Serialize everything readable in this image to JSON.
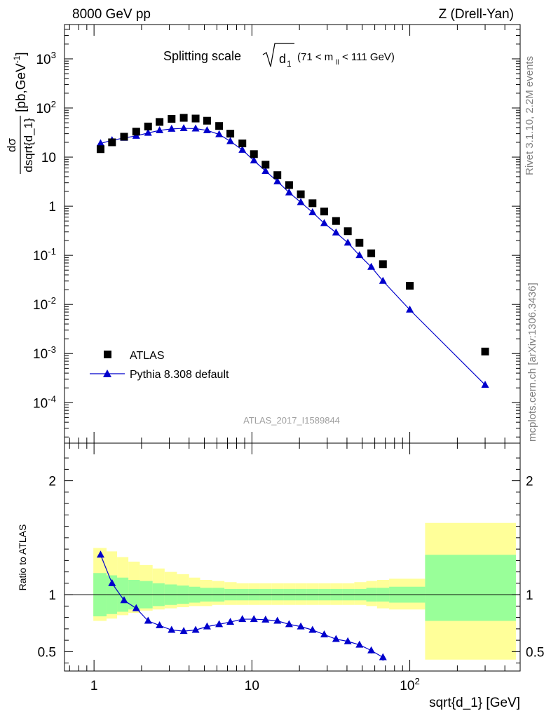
{
  "header": {
    "left": "8000 GeV pp",
    "right": "Z (Drell-Yan)"
  },
  "side_labels": {
    "rivet": "Rivet 3.1.10,  2.2M events",
    "mcplots": "mcplots.cern.ch [arXiv:1306.3436]"
  },
  "chart_data": [
    {
      "type": "scatter",
      "title": "Splitting scale √d₁ (71 < m_ll < 111 GeV)",
      "title_main": "Splitting scale",
      "title_symbol": "d",
      "title_sub": "1",
      "title_range_left": "(71 < m",
      "title_range_sub": "ll",
      "title_range_right": " < 111 GeV)",
      "ylabel_numerator": "dσ",
      "ylabel_denominator": "dsqrt{d_1}",
      "ylabel_units": "[pb,GeV",
      "ylabel_units_sup": "-1",
      "ylabel_units_close": "]",
      "yscale": "log",
      "xscale": "log",
      "xlim": [
        0.65,
        500
      ],
      "ylim": [
        1.5e-05,
        5000
      ],
      "yticks": [
        {
          "value": 0.0001,
          "base": "10",
          "exp": "-4"
        },
        {
          "value": 0.001,
          "base": "10",
          "exp": "-3"
        },
        {
          "value": 0.01,
          "base": "10",
          "exp": "-2"
        },
        {
          "value": 0.1,
          "base": "10",
          "exp": "-1"
        },
        {
          "value": 1,
          "base": "1",
          "exp": ""
        },
        {
          "value": 10,
          "base": "10",
          "exp": ""
        },
        {
          "value": 100,
          "base": "10",
          "exp": "2"
        },
        {
          "value": 1000,
          "base": "10",
          "exp": "3"
        }
      ],
      "watermark": "ATLAS_2017_I1589844",
      "legend_position": "lower-left",
      "series": [
        {
          "name": "ATLAS",
          "marker": "square",
          "color": "#000000",
          "x": [
            1.1,
            1.3,
            1.55,
            1.85,
            2.2,
            2.6,
            3.1,
            3.7,
            4.4,
            5.2,
            6.2,
            7.3,
            8.7,
            10.3,
            12.2,
            14.5,
            17.2,
            20.4,
            24.2,
            28.7,
            34.1,
            40.5,
            48.0,
            57.0,
            67.6,
            100,
            300
          ],
          "y": [
            14.5,
            20,
            26,
            33,
            42,
            52,
            60,
            63,
            61,
            55,
            43,
            30,
            19,
            11.5,
            7.0,
            4.3,
            2.7,
            1.75,
            1.15,
            0.78,
            0.5,
            0.31,
            0.18,
            0.11,
            0.066,
            0.024,
            0.0011
          ]
        },
        {
          "name": "Pythia 8.308 default",
          "marker": "triangle",
          "color": "#0000cc",
          "x": [
            1.1,
            1.3,
            1.55,
            1.85,
            2.2,
            2.6,
            3.1,
            3.7,
            4.4,
            5.2,
            6.2,
            7.3,
            8.7,
            10.3,
            12.2,
            14.5,
            17.2,
            20.4,
            24.2,
            28.7,
            34.1,
            40.5,
            48.0,
            57.0,
            67.6,
            100,
            300
          ],
          "y": [
            19,
            22,
            24.5,
            27,
            31,
            35,
            37.5,
            38.5,
            38,
            35,
            29,
            21,
            14,
            8.5,
            5.2,
            3.2,
            1.9,
            1.2,
            0.75,
            0.45,
            0.29,
            0.18,
            0.1,
            0.058,
            0.03,
            0.0078,
            0.00023
          ]
        }
      ]
    },
    {
      "type": "line",
      "ylabel": "Ratio to ATLAS",
      "xlabel": "sqrt{d_1} [GeV]",
      "xscale": "log",
      "xlim": [
        0.65,
        500
      ],
      "ylim": [
        0.33,
        2.33
      ],
      "xticks": [
        {
          "value": 1,
          "base": "1",
          "exp": ""
        },
        {
          "value": 10,
          "base": "10",
          "exp": ""
        },
        {
          "value": 100,
          "base": "10",
          "exp": "2"
        }
      ],
      "yticks": [
        {
          "value": 0.5,
          "label": "0.5"
        },
        {
          "value": 1,
          "label": "1"
        },
        {
          "value": 2,
          "label": "2"
        }
      ],
      "bands": {
        "edges": [
          0.99,
          1.2,
          1.4,
          1.65,
          1.95,
          2.35,
          2.8,
          3.35,
          4.0,
          4.7,
          5.6,
          6.7,
          8.0,
          9.5,
          11.2,
          13.3,
          15.8,
          18.8,
          22.3,
          26.5,
          31.5,
          37.5,
          44.5,
          53,
          62,
          74,
          125,
          470
        ],
        "yellow_hi": [
          1.41,
          1.38,
          1.33,
          1.29,
          1.26,
          1.23,
          1.2,
          1.18,
          1.15,
          1.13,
          1.12,
          1.11,
          1.1,
          1.1,
          1.1,
          1.1,
          1.1,
          1.1,
          1.1,
          1.1,
          1.1,
          1.1,
          1.11,
          1.12,
          1.13,
          1.14,
          1.63
        ],
        "yellow_lo": [
          0.77,
          0.79,
          0.82,
          0.84,
          0.86,
          0.87,
          0.88,
          0.89,
          0.9,
          0.9,
          0.91,
          0.91,
          0.91,
          0.91,
          0.91,
          0.91,
          0.91,
          0.91,
          0.91,
          0.91,
          0.91,
          0.91,
          0.91,
          0.9,
          0.88,
          0.87,
          0.43
        ],
        "green_hi": [
          1.19,
          1.17,
          1.15,
          1.13,
          1.12,
          1.1,
          1.09,
          1.08,
          1.07,
          1.06,
          1.06,
          1.05,
          1.05,
          1.05,
          1.05,
          1.05,
          1.05,
          1.05,
          1.05,
          1.05,
          1.05,
          1.05,
          1.05,
          1.06,
          1.06,
          1.07,
          1.35
        ],
        "green_lo": [
          0.81,
          0.83,
          0.85,
          0.87,
          0.88,
          0.9,
          0.91,
          0.92,
          0.93,
          0.94,
          0.94,
          0.95,
          0.95,
          0.95,
          0.95,
          0.95,
          0.95,
          0.95,
          0.95,
          0.95,
          0.95,
          0.95,
          0.95,
          0.94,
          0.94,
          0.93,
          0.77
        ]
      },
      "series": [
        {
          "name": "Pythia 8.308 default",
          "color": "#0000cc",
          "x": [
            1.1,
            1.3,
            1.55,
            1.85,
            2.2,
            2.6,
            3.1,
            3.7,
            4.4,
            5.2,
            6.2,
            7.3,
            8.7,
            10.3,
            12.2,
            14.5,
            17.2,
            20.4,
            24.2,
            28.7,
            34.1,
            40.5,
            48.0,
            57.0,
            67.6
          ],
          "y": [
            1.35,
            1.1,
            0.95,
            0.88,
            0.77,
            0.73,
            0.69,
            0.68,
            0.69,
            0.72,
            0.74,
            0.76,
            0.785,
            0.785,
            0.78,
            0.77,
            0.74,
            0.72,
            0.69,
            0.65,
            0.61,
            0.59,
            0.56,
            0.51,
            0.45
          ],
          "err": [
            0.01,
            0.01,
            0.01,
            0.01,
            0.01,
            0.01,
            0.01,
            0.01,
            0.01,
            0.01,
            0.01,
            0.01,
            0.01,
            0.01,
            0.01,
            0.01,
            0.01,
            0.01,
            0.01,
            0.01,
            0.01,
            0.015,
            0.02,
            0.025,
            0.03
          ]
        }
      ]
    }
  ]
}
